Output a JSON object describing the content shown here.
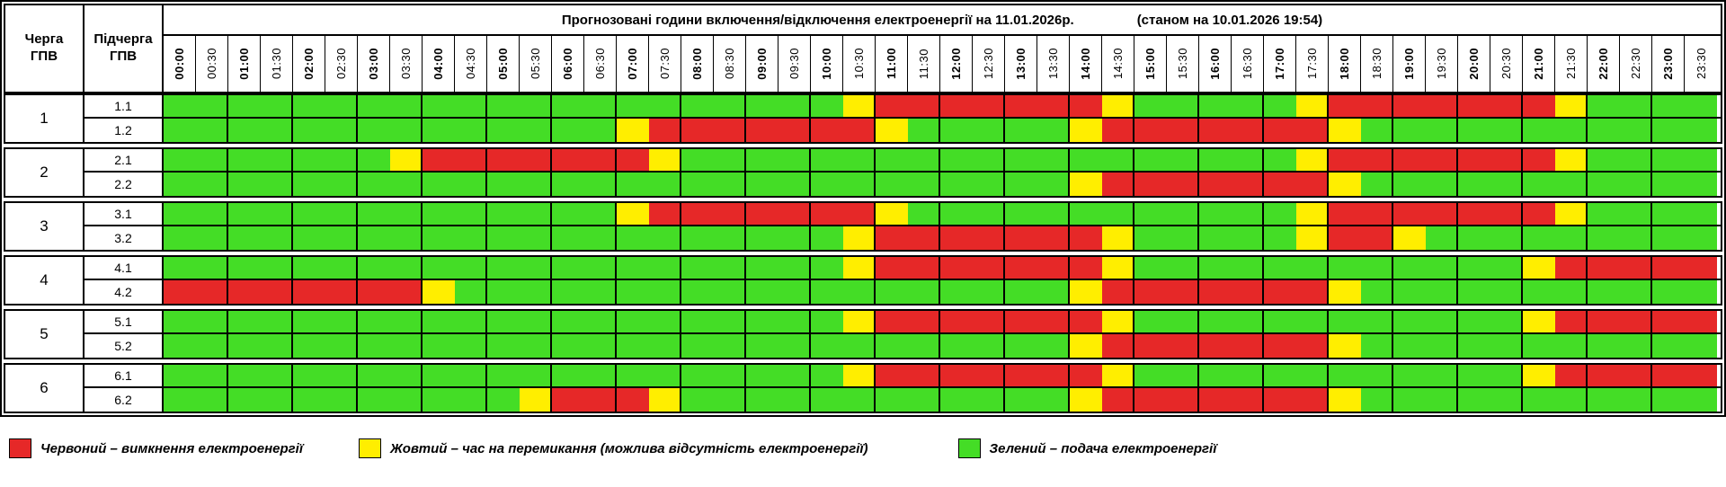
{
  "colors": {
    "green": "#44DD26",
    "yellow": "#FFEE00",
    "red": "#E62828",
    "border": "#000000"
  },
  "title": {
    "main": "Прогнозовані години включення/відключення електроенергії на 11.01.2026р.",
    "status": "(станом на 10.01.2026 19:54)"
  },
  "header": {
    "queue_col": "Черга\nГПВ",
    "subqueue_col": "Підчерга\nГПВ"
  },
  "time_slots": [
    "00:00",
    "00:30",
    "01:00",
    "01:30",
    "02:00",
    "02:30",
    "03:00",
    "03:30",
    "04:00",
    "04:30",
    "05:00",
    "05:30",
    "06:00",
    "06:30",
    "07:00",
    "07:30",
    "08:00",
    "08:30",
    "09:00",
    "09:30",
    "10:00",
    "10:30",
    "11:00",
    "11:30",
    "12:00",
    "12:30",
    "13:00",
    "13:30",
    "14:00",
    "14:30",
    "15:00",
    "15:30",
    "16:00",
    "16:30",
    "17:00",
    "17:30",
    "18:00",
    "18:30",
    "19:00",
    "19:30",
    "20:00",
    "20:30",
    "21:00",
    "21:30",
    "22:00",
    "22:30",
    "23:00",
    "23:30"
  ],
  "state_legend_note": "G=подача(зелений), Y=перемикання(жовтий), R=вимкнення(червоний); 48 півгодинних слотів 00:00-23:30",
  "groups": [
    {
      "queue": "1",
      "rows": [
        {
          "label": "1.1",
          "slots": "GGGGGGGGGGGGGGGGGGGGGYRRRRRRRYGGGGGYRRRRRRRYGGGG"
        },
        {
          "label": "1.2",
          "slots": "GGGGGGGGGGGGGGYRRRRRRRYGGGGGYRRRRRRRYGGGGGGGGGGG"
        }
      ]
    },
    {
      "queue": "2",
      "rows": [
        {
          "label": "2.1",
          "slots": "GGGGGGGYRRRRRRRYGGGGGGGGGGGGGGGGGGGYRRRRRRRYGGGG"
        },
        {
          "label": "2.2",
          "slots": "GGGGGGGGGGGGGGGGGGGGGGGGGGGGYRRRRRRRYGGGGGGGGGGG"
        }
      ]
    },
    {
      "queue": "3",
      "rows": [
        {
          "label": "3.1",
          "slots": "GGGGGGGGGGGGGGYRRRRRRRYGGGGGGGGGGGGYRRRRRRRYGGGG"
        },
        {
          "label": "3.2",
          "slots": "GGGGGGGGGGGGGGGGGGGGGYRRRRRRRYGGGGGYRRYGGGGGGGGG"
        }
      ]
    },
    {
      "queue": "4",
      "rows": [
        {
          "label": "4.1",
          "slots": "GGGGGGGGGGGGGGGGGGGGGYRRRRRRRYGGGGGGGGGGGGYRRRRR"
        },
        {
          "label": "4.2",
          "slots": "RRRRRRRRYGGGGGGGGGGGGGGGGGGGYRRRRRRRYGGGGGGGGGGG"
        }
      ]
    },
    {
      "queue": "5",
      "rows": [
        {
          "label": "5.1",
          "slots": "GGGGGGGGGGGGGGGGGGGGGYRRRRRRRYGGGGGGGGGGGGYRRRRR"
        },
        {
          "label": "5.2",
          "slots": "GGGGGGGGGGGGGGGGGGGGGGGGGGGGYRRRRRRRYGGGGGGGGGGG"
        }
      ]
    },
    {
      "queue": "6",
      "rows": [
        {
          "label": "6.1",
          "slots": "GGGGGGGGGGGGGGGGGGGGGYRRRRRRRYGGGGGGGGGGGGYRRRRR"
        },
        {
          "label": "6.2",
          "slots": "GGGGGGGGGGGYRRRYGGGGGGGGGGGGYRRRRRRRYGGGGGGGGGGG"
        }
      ]
    }
  ],
  "legend": [
    {
      "key": "red",
      "label": "Червоний – вимкнення електроенергії"
    },
    {
      "key": "yellow",
      "label": "Жовтий – час на перемикання (можлива відсутність електроенергії)"
    },
    {
      "key": "green",
      "label": "Зелений – подача електроенергії"
    }
  ]
}
